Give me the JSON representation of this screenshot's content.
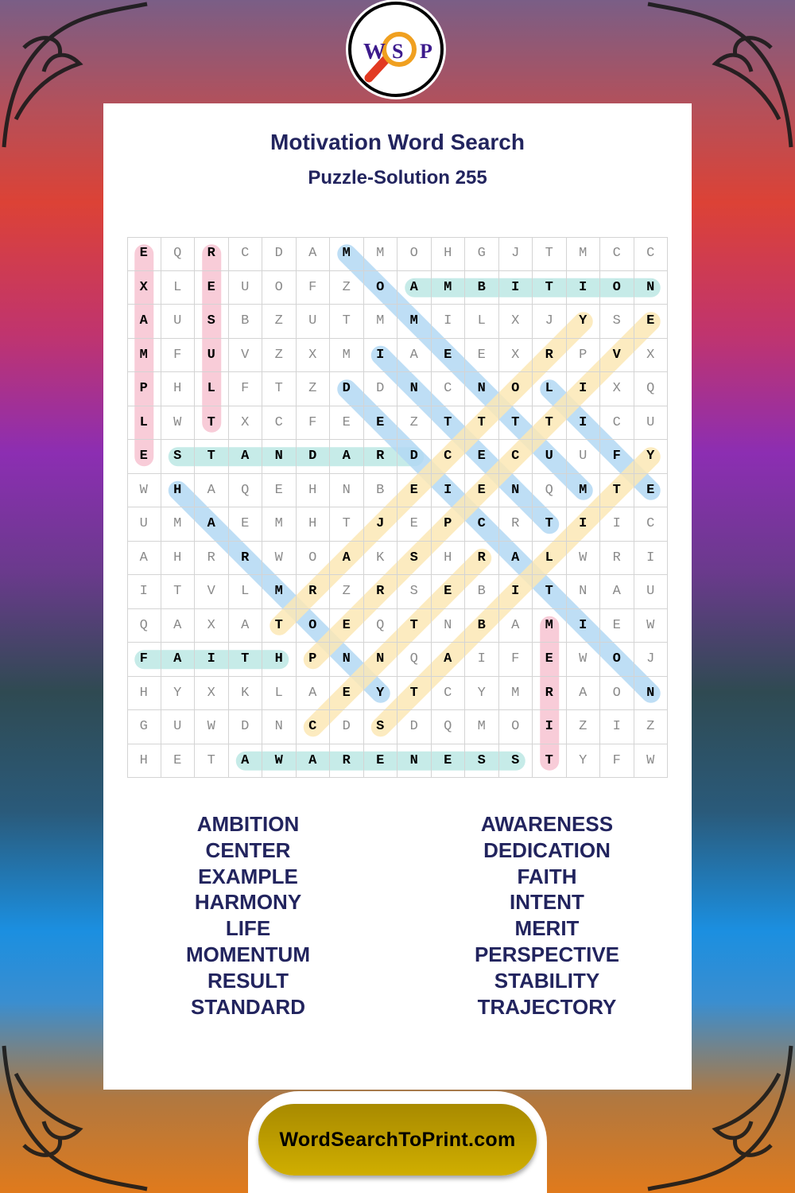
{
  "logo": {
    "letters": [
      "W",
      "S",
      "P"
    ],
    "icon": "magnifying-glass-icon"
  },
  "title": "Motivation Word Search",
  "subtitle": "Puzzle-Solution 255",
  "grid": [
    "EQRCDAMMOHGJTMCC",
    "XLEUOFZOAMBITION",
    "AUSBZUTMMILXJYSE",
    "MFUVZXMIAEEXRPVX",
    "PHLFTZDDNCNOLIXQ",
    "LWTXCFEEZTTTTICU",
    "ESTANDARDCECUUFY",
    "WHAQEHNBEIENQMTE",
    "UMAEMHTJEPCRTIIC",
    "AHRRWOAKSHRALWRI",
    "ITVLMRZRSEBITNAU",
    "QAXATOEQTNBAMIEW",
    "FAITHPNNQAIFEWOJ",
    "HYXKLAEYTCYMRAON",
    "GUWDNCDSDQMOIZIZ",
    "HETAWARENESSTYFW"
  ],
  "colors": {
    "pink": "#f7c4d2",
    "teal": "#bde8e5",
    "blue": "#b3d9f4",
    "yellow": "#fce8b6",
    "title": "#22245e",
    "footer": "#c0a000"
  },
  "solutions": [
    {
      "word": "EXAMPLE",
      "start": [
        0,
        0
      ],
      "end": [
        6,
        0
      ],
      "color": "pink"
    },
    {
      "word": "RESULT",
      "start": [
        0,
        2
      ],
      "end": [
        5,
        2
      ],
      "color": "pink"
    },
    {
      "word": "MERIT",
      "start": [
        11,
        12
      ],
      "end": [
        15,
        12
      ],
      "color": "pink"
    },
    {
      "word": "AMBITION",
      "start": [
        1,
        8
      ],
      "end": [
        1,
        15
      ],
      "color": "teal"
    },
    {
      "word": "STANDARD",
      "start": [
        6,
        1
      ],
      "end": [
        6,
        8
      ],
      "color": "teal"
    },
    {
      "word": "FAITH",
      "start": [
        12,
        0
      ],
      "end": [
        12,
        4
      ],
      "color": "teal"
    },
    {
      "word": "AWARENESS",
      "start": [
        15,
        3
      ],
      "end": [
        15,
        11
      ],
      "color": "teal"
    },
    {
      "word": "MOMENTUM",
      "start": [
        0,
        6
      ],
      "end": [
        7,
        13
      ],
      "color": "blue"
    },
    {
      "word": "INTENT",
      "start": [
        3,
        7
      ],
      "end": [
        8,
        12
      ],
      "color": "blue"
    },
    {
      "word": "DEDICATION",
      "start": [
        4,
        6
      ],
      "end": [
        13,
        15
      ],
      "color": "blue"
    },
    {
      "word": "LIFE",
      "start": [
        4,
        12
      ],
      "end": [
        7,
        15
      ],
      "color": "blue"
    },
    {
      "word": "HARMONY",
      "start": [
        7,
        1
      ],
      "end": [
        13,
        7
      ],
      "color": "blue"
    },
    {
      "word": "TRAJECTORY",
      "start": [
        11,
        4
      ],
      "end": [
        2,
        13
      ],
      "color": "yellow"
    },
    {
      "word": "PERSPECTIVE",
      "start": [
        12,
        5
      ],
      "end": [
        2,
        15
      ],
      "color": "yellow"
    },
    {
      "word": "CENTER",
      "start": [
        14,
        5
      ],
      "end": [
        9,
        10
      ],
      "color": "yellow"
    },
    {
      "word": "STABILITY",
      "start": [
        14,
        7
      ],
      "end": [
        6,
        15
      ],
      "color": "yellow"
    }
  ],
  "word_list_left": [
    "AMBITION",
    "CENTER",
    "EXAMPLE",
    "HARMONY",
    "LIFE",
    "MOMENTUM",
    "RESULT",
    "STANDARD"
  ],
  "word_list_right": [
    "AWARENESS",
    "DEDICATION",
    "FAITH",
    "INTENT",
    "MERIT",
    "PERSPECTIVE",
    "STABILITY",
    "TRAJECTORY"
  ],
  "footer": {
    "site": "WordSearchToPrint.com"
  }
}
